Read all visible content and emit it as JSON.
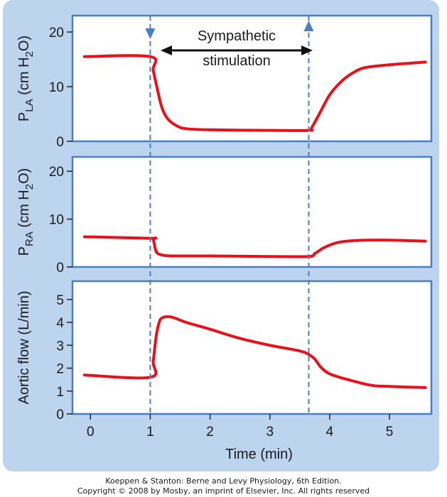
{
  "figure": {
    "background_color": "#bcd4ee",
    "curve_color": "#e8101b",
    "frame_color": "#4a7fc1",
    "marker_color": "#4a7fc1"
  },
  "annotation": {
    "line1": "Sympathetic",
    "line2": "stimulation"
  },
  "chart_data": [
    {
      "type": "line",
      "ylabel": {
        "main": "P",
        "sub": "LA",
        "units_pre": " (cm H",
        "units_sub": "2",
        "units_post": "O)"
      },
      "xlim": [
        -0.3,
        5.7
      ],
      "ylim": [
        0,
        23
      ],
      "yticks": [
        0,
        10,
        20
      ],
      "series": [
        {
          "x": [
            -0.1,
            1.0,
            1.05,
            1.12,
            1.2,
            1.3,
            1.45,
            1.6,
            2.0,
            3.0,
            3.65,
            3.7,
            3.85,
            4.0,
            4.2,
            4.4,
            4.6,
            5.0,
            5.6
          ],
          "values": [
            15.5,
            15.5,
            13.0,
            9.5,
            6.0,
            4.0,
            2.8,
            2.3,
            2.1,
            2.0,
            2.0,
            2.5,
            5.5,
            8.5,
            11.0,
            12.6,
            13.5,
            14.0,
            14.5
          ]
        }
      ]
    },
    {
      "type": "line",
      "ylabel": {
        "main": "P",
        "sub": "RA",
        "units_pre": " (cm H",
        "units_sub": "2",
        "units_post": "O)"
      },
      "xlim": [
        -0.3,
        5.7
      ],
      "ylim": [
        0,
        23
      ],
      "yticks": [
        0,
        10,
        20
      ],
      "series": [
        {
          "x": [
            -0.1,
            1.0,
            1.05,
            1.1,
            1.2,
            1.4,
            2.0,
            3.0,
            3.65,
            3.75,
            3.9,
            4.1,
            4.3,
            4.6,
            5.0,
            5.6
          ],
          "values": [
            6.3,
            6.0,
            5.8,
            3.2,
            2.5,
            2.3,
            2.3,
            2.2,
            2.2,
            2.8,
            4.0,
            5.0,
            5.4,
            5.6,
            5.6,
            5.4
          ]
        }
      ]
    },
    {
      "type": "line",
      "ylabel": {
        "main": "Aortic flow (L/min)"
      },
      "xlabel": "Time (min)",
      "xlim": [
        -0.3,
        5.7
      ],
      "ylim": [
        0,
        5.8
      ],
      "yticks": [
        0,
        1,
        2,
        3,
        4,
        5
      ],
      "xticks": [
        0,
        1,
        2,
        3,
        4,
        5
      ],
      "series": [
        {
          "x": [
            -0.1,
            1.0,
            1.05,
            1.1,
            1.15,
            1.2,
            1.3,
            1.4,
            1.6,
            2.0,
            2.5,
            3.0,
            3.5,
            3.65,
            3.75,
            3.85,
            4.0,
            4.3,
            4.7,
            5.0,
            5.6
          ],
          "values": [
            1.7,
            1.6,
            2.3,
            3.4,
            4.0,
            4.2,
            4.25,
            4.2,
            4.0,
            3.7,
            3.3,
            3.0,
            2.75,
            2.6,
            2.4,
            2.05,
            1.75,
            1.5,
            1.25,
            1.2,
            1.15
          ]
        }
      ]
    }
  ],
  "stimulation": {
    "start": 1.0,
    "end": 3.65
  },
  "caption": {
    "line1": "Koeppen & Stanton: Berne and Levy Physiology, 6th Edition.",
    "line2": "Copyright © 2008 by Mosby, an imprint of Elsevier, Inc. All rights reserved"
  }
}
